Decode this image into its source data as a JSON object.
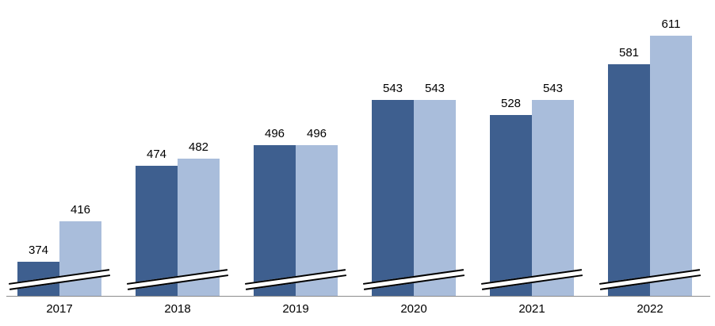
{
  "chart_data": {
    "type": "bar",
    "title": "",
    "xlabel": "",
    "ylabel": "",
    "categories": [
      "2017",
      "2018",
      "2019",
      "2020",
      "2021",
      "2022"
    ],
    "series": [
      {
        "name": "series-1-dark",
        "color": "#3e5f8f",
        "values": [
          374,
          474,
          496,
          543,
          528,
          581
        ]
      },
      {
        "name": "series-2-light",
        "color": "#a9bddb",
        "values": [
          416,
          482,
          496,
          543,
          543,
          611
        ]
      }
    ],
    "data_labels": true,
    "grid": false,
    "legend": "none",
    "axis_break": true,
    "ylim": [
      338,
      620
    ],
    "axis_line_color": "#8c8c8c"
  }
}
